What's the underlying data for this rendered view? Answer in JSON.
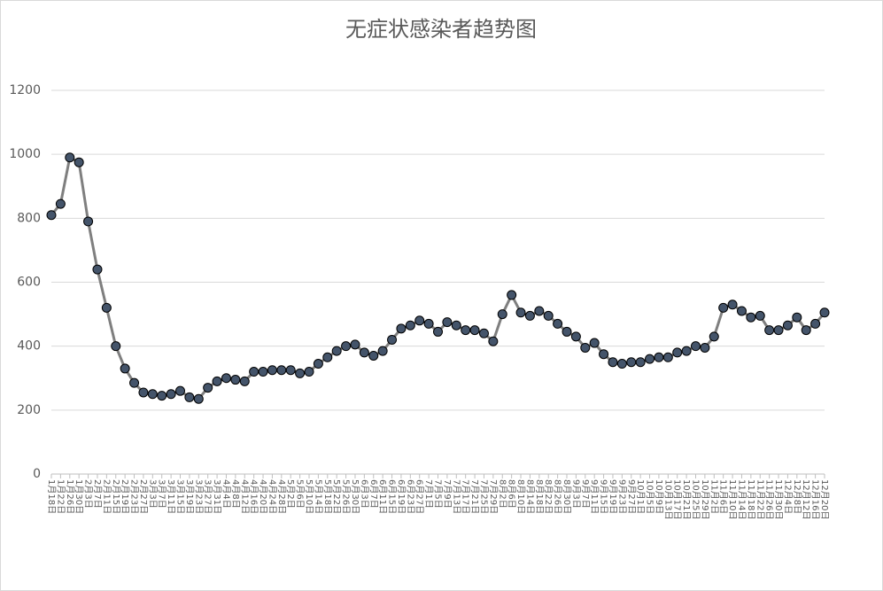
{
  "chart_data": {
    "type": "line",
    "title": "无症状感染者趋势图",
    "categories": [
      "1月18日",
      "1月22日",
      "1月26日",
      "1月30日",
      "2月3日",
      "2月7日",
      "2月11日",
      "2月15日",
      "2月19日",
      "2月23日",
      "2月27日",
      "3月3日",
      "3月7日",
      "3月11日",
      "3月15日",
      "3月19日",
      "3月23日",
      "3月27日",
      "3月31日",
      "4月4日",
      "4月8日",
      "4月12日",
      "4月16日",
      "4月20日",
      "4月24日",
      "4月28日",
      "5月2日",
      "5月6日",
      "5月10日",
      "5月14日",
      "5月18日",
      "5月22日",
      "5月26日",
      "5月30日",
      "6月3日",
      "6月7日",
      "6月11日",
      "6月15日",
      "6月19日",
      "6月23日",
      "6月27日",
      "7月1日",
      "7月5日",
      "7月9日",
      "7月13日",
      "7月17日",
      "7月21日",
      "7月25日",
      "7月29日",
      "8月2日",
      "8月6日",
      "8月10日",
      "8月14日",
      "8月18日",
      "8月22日",
      "8月26日",
      "8月30日",
      "9月3日",
      "9月7日",
      "9月11日",
      "9月15日",
      "9月19日",
      "9月23日",
      "9月27日",
      "10月1日",
      "10月5日",
      "10月9日",
      "10月13日",
      "10月17日",
      "10月21日",
      "10月25日",
      "10月29日",
      "11月2日",
      "11月6日",
      "11月10日",
      "11月14日",
      "11月18日",
      "11月22日",
      "11月26日",
      "11月30日",
      "12月4日",
      "12月8日",
      "12月12日",
      "12月16日",
      "12月20日"
    ],
    "series": [
      {
        "color": "#7f7f7f",
        "marker_color": "#44546a",
        "values": [
          810,
          845,
          990,
          975,
          790,
          640,
          520,
          400,
          330,
          285,
          255,
          250,
          245,
          250,
          260,
          240,
          235,
          270,
          290,
          300,
          295,
          290,
          320,
          320,
          325,
          325,
          325,
          315,
          320,
          345,
          365,
          385,
          400,
          405,
          380,
          370,
          385,
          420,
          455,
          465,
          480,
          470,
          445,
          475,
          465,
          450,
          450,
          440,
          415,
          500,
          560,
          505,
          495,
          510,
          495,
          470,
          445,
          430,
          395,
          410,
          375,
          350,
          345,
          350,
          350,
          360,
          365,
          365,
          380,
          385,
          400,
          395,
          430,
          520,
          530,
          510,
          490,
          495,
          450,
          450,
          465,
          490,
          450,
          470,
          505
        ]
      }
    ],
    "ylim": [
      0,
      1200
    ],
    "yticks": [
      0,
      200,
      400,
      600,
      800,
      1000,
      1200
    ],
    "grid": true
  }
}
